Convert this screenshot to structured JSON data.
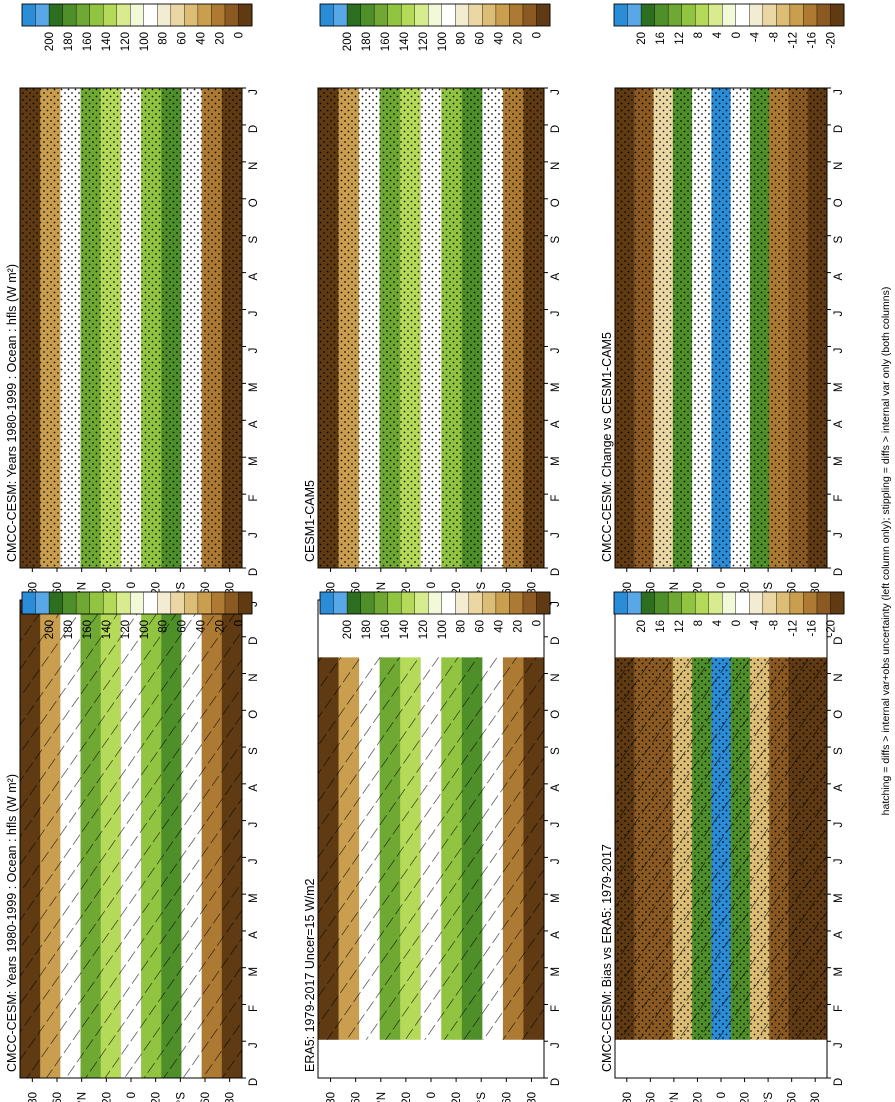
{
  "footer_note": "hatching = diffs > internal var+obs uncertainty (left column only); stippling = diffs > internal var only (both columns)",
  "months": [
    "D",
    "J",
    "F",
    "M",
    "A",
    "M",
    "J",
    "J",
    "A",
    "S",
    "O",
    "N",
    "D",
    "J"
  ],
  "lat_ticks": [
    "80",
    "60",
    "°N",
    "20",
    "0",
    "20",
    "°S",
    "60",
    "80"
  ],
  "colorbars": {
    "absolute": {
      "labels": [
        "200",
        "180",
        "160",
        "140",
        "120",
        "100",
        "80",
        "60",
        "40",
        "20",
        "0"
      ],
      "colors": [
        "#2b8cd8",
        "#59a7e6",
        "#2d6e21",
        "#4f8f2a",
        "#6fa833",
        "#91c441",
        "#b5da5a",
        "#d6ec8f",
        "#f2f9d8",
        "#ffffff",
        "#f4ecd2",
        "#ead7a4",
        "#dcbd75",
        "#c99e4f",
        "#ad7a33",
        "#8a5a22",
        "#5f3a12"
      ]
    },
    "difference": {
      "labels": [
        "20",
        "16",
        "12",
        "8",
        "4",
        "0",
        "-4",
        "-8",
        "-12",
        "-16",
        "-20"
      ],
      "colors": [
        "#2b8cd8",
        "#59a7e6",
        "#2d6e21",
        "#4f8f2a",
        "#6fa833",
        "#91c441",
        "#b5da5a",
        "#d6ec8f",
        "#f2f9d8",
        "#ffffff",
        "#f4ecd2",
        "#ead7a4",
        "#dcbd75",
        "#c99e4f",
        "#ad7a33",
        "#8a5a22",
        "#5f3a12"
      ]
    }
  },
  "chart_data": [
    {
      "type": "heatmap",
      "title": "CMCC-CESM: Years 1980-1999 : Ocean : hfls (W m²)",
      "x_axis": "month (D to J)",
      "y_axis": "latitude",
      "colorbar": "absolute",
      "hatching": true,
      "stippling": false,
      "data_months": "D-J"
    },
    {
      "type": "heatmap",
      "title": "ERA5: 1979-2017 Uncer=15 W/m2",
      "x_axis": "month (D to J)",
      "y_axis": "latitude",
      "colorbar": "absolute",
      "hatching": true,
      "stippling": false,
      "data_months": "F-D"
    },
    {
      "type": "heatmap",
      "title": "CMCC-CESM: Bias vs ERA5: 1979-2017",
      "x_axis": "month (D to J)",
      "y_axis": "latitude",
      "colorbar": "difference",
      "hatching": true,
      "stippling": true,
      "data_months": "F-D"
    },
    {
      "type": "heatmap",
      "title": "CMCC-CESM: Years 1980-1999 : Ocean : hfls (W m²)",
      "x_axis": "month (D to J)",
      "y_axis": "latitude",
      "colorbar": "absolute",
      "hatching": false,
      "stippling": true,
      "data_months": "D-J"
    },
    {
      "type": "heatmap",
      "title": "CESM1-CAM5",
      "x_axis": "month (D to J)",
      "y_axis": "latitude",
      "colorbar": "absolute",
      "hatching": false,
      "stippling": true,
      "data_months": "D-J"
    },
    {
      "type": "heatmap",
      "title": "CMCC-CESM: Change vs CESM1-CAM5",
      "x_axis": "month (D to J)",
      "y_axis": "latitude",
      "colorbar": "difference",
      "hatching": false,
      "stippling": true,
      "data_months": "D-J"
    }
  ]
}
